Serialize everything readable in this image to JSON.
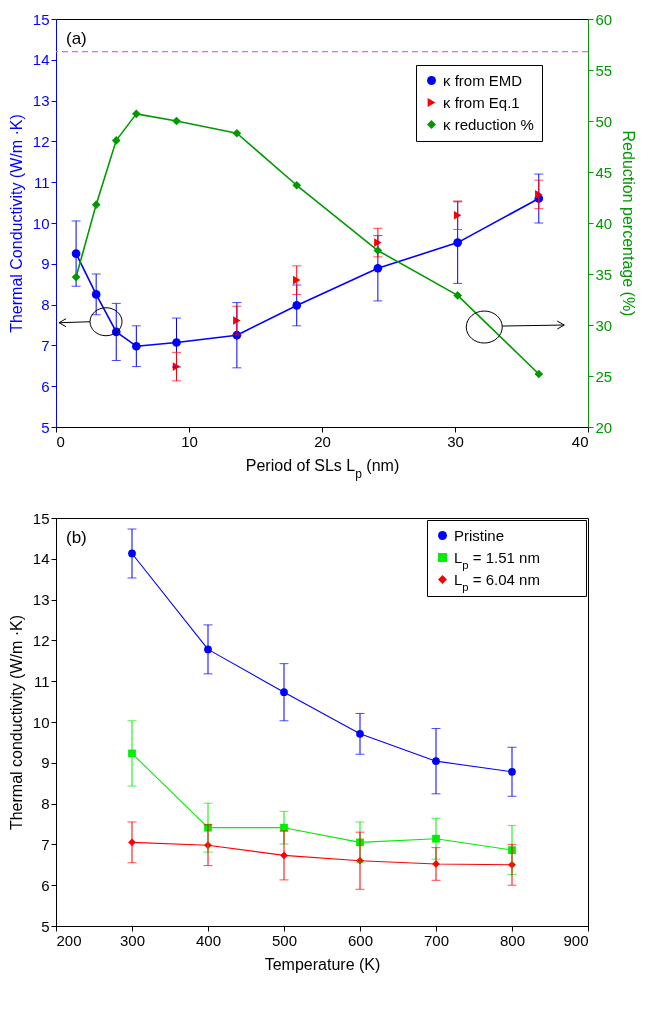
{
  "chart_data": [
    {
      "type": "line",
      "annotations": [
        "(a)"
      ],
      "xlabel": "Period of SLs L$_{p}$ (nm)",
      "ylabel": "Thermal Conductivity (W/m ·K)",
      "y2label": "Reduction percentage (%)",
      "x": [
        1.51,
        3.02,
        4.53,
        6.04,
        9.06,
        13.6,
        18.1,
        24.2,
        30.2,
        36.3
      ],
      "xlim": [
        0,
        40
      ],
      "xticks": [
        0,
        10,
        20,
        30,
        40
      ],
      "ylim": [
        5,
        15
      ],
      "yticks": [
        5,
        6,
        7,
        8,
        9,
        10,
        11,
        12,
        13,
        14,
        15
      ],
      "y2lim": [
        20,
        60
      ],
      "y2ticks": [
        20,
        25,
        30,
        35,
        40,
        45,
        50,
        55,
        60
      ],
      "legend": "top right",
      "ref_lines": [
        {
          "axis": "y",
          "value": 14.2,
          "color": "#ff55ff",
          "line_style": "dashed"
        }
      ],
      "series": [
        {
          "name": "κ from EMD",
          "color": "#0000ff",
          "marker": "circle",
          "values": [
            9.25,
            8.25,
            7.33,
            6.98,
            7.07,
            7.25,
            7.98,
            8.89,
            9.52,
            10.6
          ],
          "errors": [
            0.8,
            0.5,
            0.7,
            0.5,
            0.6,
            0.8,
            0.5,
            0.8,
            1.0,
            0.6
          ]
        },
        {
          "name": "κ from Eq.1",
          "type": "scatter",
          "color": "#ff0000",
          "marker": "triangle",
          "x": [
            9.06,
            13.6,
            18.1,
            24.2,
            30.2,
            36.3
          ],
          "values": [
            6.48,
            7.61,
            8.6,
            9.52,
            10.19,
            10.7
          ],
          "errors": [
            0.35,
            0.35,
            0.35,
            0.35,
            0.35,
            0.35
          ]
        },
        {
          "name": "κ reduction %",
          "axis": "y2",
          "color": "#009900",
          "marker": "diamond",
          "values": [
            34.7,
            41.8,
            48.1,
            50.7,
            50.0,
            48.8,
            43.7,
            37.3,
            32.9,
            25.2
          ]
        }
      ]
    },
    {
      "type": "line",
      "annotations": [
        "(b)"
      ],
      "xlabel": "Temperature (K)",
      "ylabel": "Thermal conductivity (W/m ·K)",
      "x": [
        300,
        400,
        500,
        600,
        700,
        800
      ],
      "xlim": [
        200,
        900
      ],
      "xticks": [
        200,
        300,
        400,
        500,
        600,
        700,
        800,
        900
      ],
      "ylim": [
        5,
        15
      ],
      "yticks": [
        5,
        6,
        7,
        8,
        9,
        10,
        11,
        12,
        13,
        14,
        15
      ],
      "legend": "top right",
      "series": [
        {
          "name": "Pristine",
          "color": "#0000ff",
          "marker": "circle",
          "values": [
            14.13,
            11.78,
            10.73,
            9.71,
            9.04,
            8.78
          ],
          "errors": [
            0.6,
            0.6,
            0.7,
            0.5,
            0.8,
            0.6
          ]
        },
        {
          "name": "L$_{p}$ = 1.51 nm",
          "color": "#00ee00",
          "marker": "square",
          "values": [
            9.23,
            7.41,
            7.41,
            7.05,
            7.14,
            6.86
          ],
          "errors": [
            0.8,
            0.6,
            0.4,
            0.5,
            0.5,
            0.6
          ]
        },
        {
          "name": "L$_{p}$ = 6.04 nm",
          "color": "#ff0000",
          "marker": "diamond",
          "values": [
            7.05,
            6.98,
            6.73,
            6.6,
            6.52,
            6.5
          ],
          "errors": [
            0.5,
            0.5,
            0.6,
            0.7,
            0.4,
            0.5
          ]
        }
      ]
    }
  ]
}
